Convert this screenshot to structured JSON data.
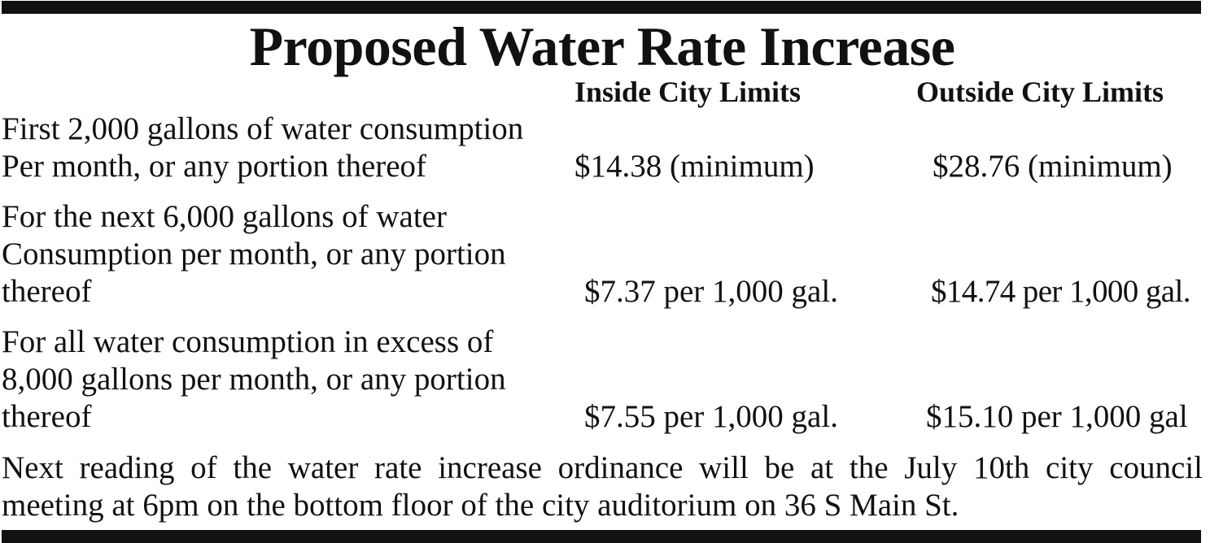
{
  "title": "Proposed Water Rate Increase",
  "columns": {
    "inside": "Inside City Limits",
    "outside": "Outside City Limits"
  },
  "rows": [
    {
      "lines": [
        "First 2,000 gallons of water consumption",
        "Per month, or any portion thereof"
      ],
      "inside": "$14.38 (minimum)",
      "outside": "$28.76 (minimum)"
    },
    {
      "lines": [
        "For the next 6,000 gallons of water",
        "Consumption per month, or any portion",
        "thereof"
      ],
      "inside": "$7.37 per 1,000 gal.",
      "outside": "$14.74 per 1,000 gal."
    },
    {
      "lines": [
        "For all water consumption in excess of",
        "8,000 gallons per month, or any portion",
        "thereof"
      ],
      "inside": "$7.55 per 1,000 gal.",
      "outside": "$15.10 per 1,000 gal"
    }
  ],
  "note": {
    "line1": "Next reading of the water rate increase ordinance will be at the July 10th city council",
    "line2": "meeting at 6pm on the bottom floor of the city auditorium on 36 S Main St."
  }
}
